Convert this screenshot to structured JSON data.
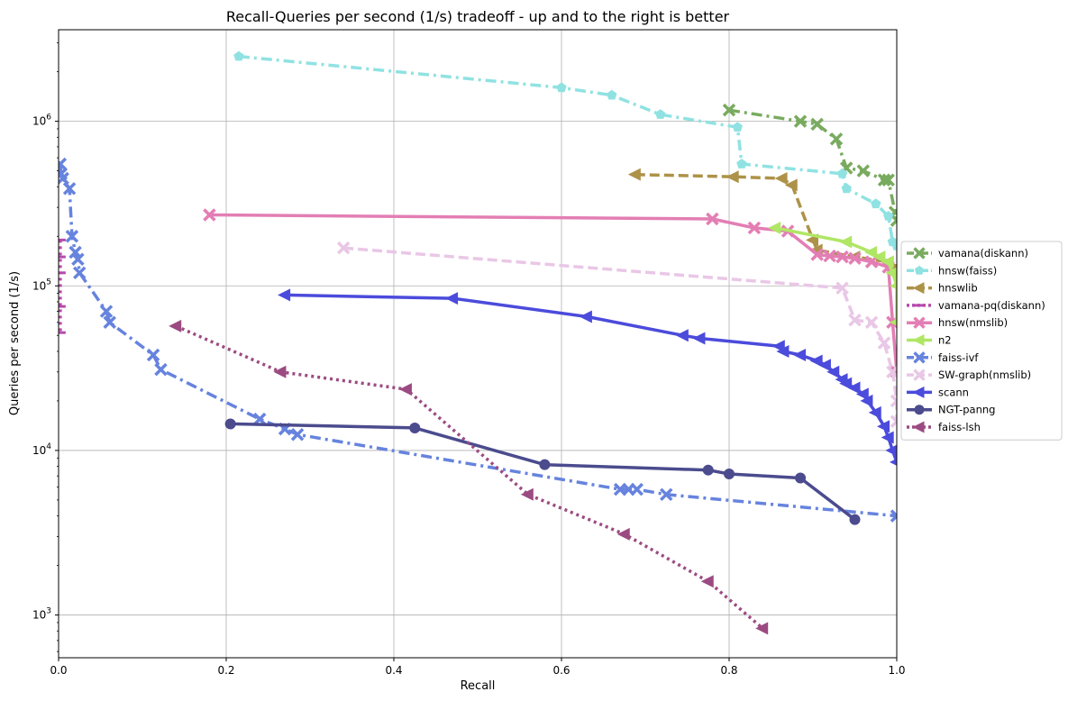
{
  "chart_data": {
    "type": "line",
    "title": "Recall-Queries per second (1/s) tradeoff - up and to the right is better",
    "xlabel": "Recall",
    "ylabel": "Queries per second (1/s)",
    "xlim": [
      0.0,
      1.0
    ],
    "ylim": [
      550,
      3600000
    ],
    "yscale": "log",
    "grid": true,
    "legend": "right, outside",
    "x_ticks": [
      {
        "v": 0.0,
        "label": "0.0"
      },
      {
        "v": 0.2,
        "label": "0.2"
      },
      {
        "v": 0.4,
        "label": "0.4"
      },
      {
        "v": 0.6,
        "label": "0.6"
      },
      {
        "v": 0.8,
        "label": "0.8"
      },
      {
        "v": 1.0,
        "label": "1.0"
      }
    ],
    "y_ticks": [
      {
        "v": 1000,
        "base": "10",
        "exp": "3"
      },
      {
        "v": 10000,
        "base": "10",
        "exp": "4"
      },
      {
        "v": 100000,
        "base": "10",
        "exp": "5"
      },
      {
        "v": 1000000,
        "base": "10",
        "exp": "6"
      }
    ],
    "series": [
      {
        "name": "vamana(diskann)",
        "color": "#79ab5f",
        "marker": "x",
        "dash": "dashdot",
        "points": [
          [
            0.8,
            1170000
          ],
          [
            0.885,
            1000000
          ],
          [
            0.905,
            960000
          ],
          [
            0.928,
            780000
          ],
          [
            0.94,
            520000
          ],
          [
            0.96,
            500000
          ],
          [
            0.985,
            440000
          ],
          [
            0.99,
            440000
          ],
          [
            0.998,
            280000
          ],
          [
            1.0,
            250000
          ]
        ]
      },
      {
        "name": "hnsw(faiss)",
        "color": "#90e2e2",
        "marker": "pentagon",
        "dash": "dashdot",
        "points": [
          [
            0.215,
            2480000
          ],
          [
            0.6,
            1600000
          ],
          [
            0.66,
            1440000
          ],
          [
            0.718,
            1100000
          ],
          [
            0.81,
            920000
          ],
          [
            0.815,
            550000
          ],
          [
            0.935,
            480000
          ],
          [
            0.94,
            390000
          ],
          [
            0.975,
            315000
          ],
          [
            0.99,
            265000
          ],
          [
            0.995,
            185000
          ],
          [
            1.0,
            175000
          ]
        ]
      },
      {
        "name": "hnswlib",
        "color": "#ad9248",
        "marker": "tri-left",
        "dash": "dashed",
        "points": [
          [
            0.688,
            475000
          ],
          [
            0.805,
            460000
          ],
          [
            0.863,
            450000
          ],
          [
            0.875,
            410000
          ],
          [
            0.9,
            190000
          ],
          [
            0.905,
            165000
          ],
          [
            0.95,
            150000
          ],
          [
            0.99,
            140000
          ],
          [
            1.0,
            130000
          ]
        ]
      },
      {
        "name": "vamana-pq(diskann)",
        "color": "#b64aac",
        "marker": "tick",
        "dash": "dotted",
        "points": [
          [
            0.002,
            190000
          ],
          [
            0.002,
            150000
          ],
          [
            0.002,
            120000
          ],
          [
            0.002,
            75000
          ],
          [
            0.002,
            52000
          ]
        ]
      },
      {
        "name": "hnsw(nmslib)",
        "color": "#e37eb4",
        "marker": "x",
        "dash": "solid",
        "points": [
          [
            0.18,
            270000
          ],
          [
            0.78,
            255000
          ],
          [
            0.83,
            225000
          ],
          [
            0.87,
            215000
          ],
          [
            0.905,
            155000
          ],
          [
            0.92,
            152000
          ],
          [
            0.935,
            150000
          ],
          [
            0.95,
            147000
          ],
          [
            0.97,
            140000
          ],
          [
            0.99,
            130000
          ],
          [
            0.995,
            60000
          ],
          [
            1.0,
            30000
          ]
        ]
      },
      {
        "name": "n2",
        "color": "#b0e665",
        "marker": "tri-left",
        "dash": "solid",
        "points": [
          [
            0.855,
            225000
          ],
          [
            0.94,
            185000
          ],
          [
            0.97,
            160000
          ],
          [
            0.98,
            150000
          ],
          [
            0.99,
            140000
          ],
          [
            0.995,
            120000
          ],
          [
            1.0,
            100000
          ],
          [
            1.0,
            60000
          ]
        ]
      },
      {
        "name": "faiss-ivf",
        "color": "#6683de",
        "marker": "x",
        "dash": "dashdot",
        "points": [
          [
            0.002,
            550000
          ],
          [
            0.003,
            480000
          ],
          [
            0.005,
            450000
          ],
          [
            0.013,
            390000
          ],
          [
            0.016,
            200000
          ],
          [
            0.02,
            160000
          ],
          [
            0.023,
            145000
          ],
          [
            0.025,
            120000
          ],
          [
            0.057,
            70000
          ],
          [
            0.061,
            60000
          ],
          [
            0.113,
            38000
          ],
          [
            0.122,
            31000
          ],
          [
            0.24,
            15500
          ],
          [
            0.27,
            13500
          ],
          [
            0.285,
            12500
          ],
          [
            0.67,
            5800
          ],
          [
            0.68,
            5800
          ],
          [
            0.69,
            5800
          ],
          [
            0.725,
            5400
          ],
          [
            1.0,
            4000
          ]
        ]
      },
      {
        "name": "SW-graph(nmslib)",
        "color": "#e9c7e6",
        "marker": "x",
        "dash": "dashed",
        "points": [
          [
            0.34,
            170000
          ],
          [
            0.935,
            97000
          ],
          [
            0.95,
            62000
          ],
          [
            0.97,
            60000
          ],
          [
            0.985,
            45000
          ],
          [
            0.995,
            30000
          ],
          [
            1.0,
            20000
          ],
          [
            1.0,
            15000
          ]
        ]
      },
      {
        "name": "scann",
        "color": "#4b4bdc",
        "marker": "tri-left",
        "dash": "solid",
        "points": [
          [
            0.27,
            88000
          ],
          [
            0.47,
            84000
          ],
          [
            0.63,
            65000
          ],
          [
            0.745,
            50000
          ],
          [
            0.765,
            48000
          ],
          [
            0.86,
            43000
          ],
          [
            0.865,
            40000
          ],
          [
            0.885,
            38000
          ],
          [
            0.905,
            35000
          ],
          [
            0.915,
            33000
          ],
          [
            0.925,
            30000
          ],
          [
            0.935,
            27000
          ],
          [
            0.94,
            25500
          ],
          [
            0.95,
            24000
          ],
          [
            0.96,
            22000
          ],
          [
            0.965,
            20000
          ],
          [
            0.975,
            17000
          ],
          [
            0.985,
            14000
          ],
          [
            0.99,
            12000
          ],
          [
            0.995,
            10000
          ],
          [
            1.0,
            8500
          ]
        ]
      },
      {
        "name": "NGT-panng",
        "color": "#4b4b8e",
        "marker": "circle",
        "dash": "solid",
        "points": [
          [
            0.205,
            14500
          ],
          [
            0.425,
            13700
          ],
          [
            0.58,
            8200
          ],
          [
            0.775,
            7600
          ],
          [
            0.8,
            7200
          ],
          [
            0.885,
            6800
          ],
          [
            0.95,
            3800
          ]
        ]
      },
      {
        "name": "faiss-lsh",
        "color": "#9b4b82",
        "marker": "tri-left",
        "dash": "dotted",
        "points": [
          [
            0.14,
            57000
          ],
          [
            0.265,
            30000
          ],
          [
            0.415,
            23500
          ],
          [
            0.56,
            5400
          ],
          [
            0.675,
            3100
          ],
          [
            0.775,
            1600
          ],
          [
            0.84,
            830
          ]
        ]
      }
    ]
  }
}
